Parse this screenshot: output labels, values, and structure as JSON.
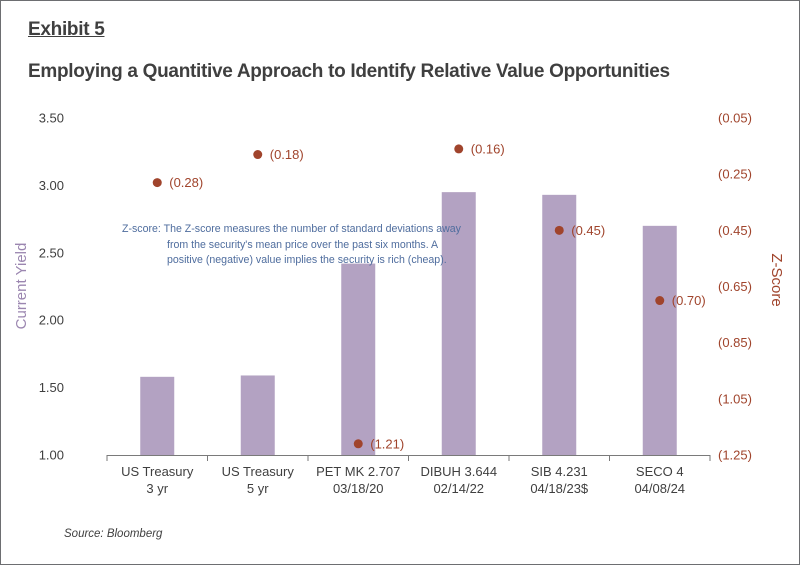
{
  "exhibit": "Exhibit 5",
  "title": "Employing a Quantitive Approach to Identify Relative Value Opportunities",
  "source": "Source: Bloomberg",
  "chart_data": {
    "type": "bar",
    "categories": [
      [
        "US Treasury",
        "3 yr"
      ],
      [
        "US Treasury",
        "5 yr"
      ],
      [
        "PET MK 2.707",
        "03/18/20"
      ],
      [
        "DIBUH 3.644",
        "02/14/22"
      ],
      [
        "SIB 4.231",
        "04/18/23$"
      ],
      [
        "SECO 4",
        "04/08/24"
      ]
    ],
    "ylabel": "Current Yield",
    "ylim": [
      1.0,
      3.5
    ],
    "yticks": [
      "1.00",
      "1.50",
      "2.00",
      "2.50",
      "3.00",
      "3.50"
    ],
    "y2label": "Z-Score",
    "y2lim": [
      -1.25,
      -0.05
    ],
    "y2ticks": [
      "(1.25)",
      "(1.05)",
      "(0.85)",
      "(0.65)",
      "(0.45)",
      "(0.25)",
      "(0.05)"
    ],
    "series": [
      {
        "type": "bar",
        "axis": "left",
        "color": "#b3a2c2",
        "values": [
          1.58,
          1.59,
          2.42,
          2.95,
          2.93,
          2.7
        ]
      },
      {
        "type": "scatter",
        "axis": "right",
        "color": "#a0442c",
        "values": [
          -0.28,
          -0.18,
          -1.21,
          -0.16,
          -0.45,
          -0.7
        ],
        "labels": [
          "(0.28)",
          "(0.18)",
          "(1.21)",
          "(0.16)",
          "(0.45)",
          "(0.70)"
        ]
      }
    ],
    "annotation": [
      "Z-score: The Z-score measures the number of standard deviations away",
      "from the security's mean price over the past six months.  A",
      "positive (negative) value implies the security is rich (cheap)."
    ],
    "grid": false
  }
}
